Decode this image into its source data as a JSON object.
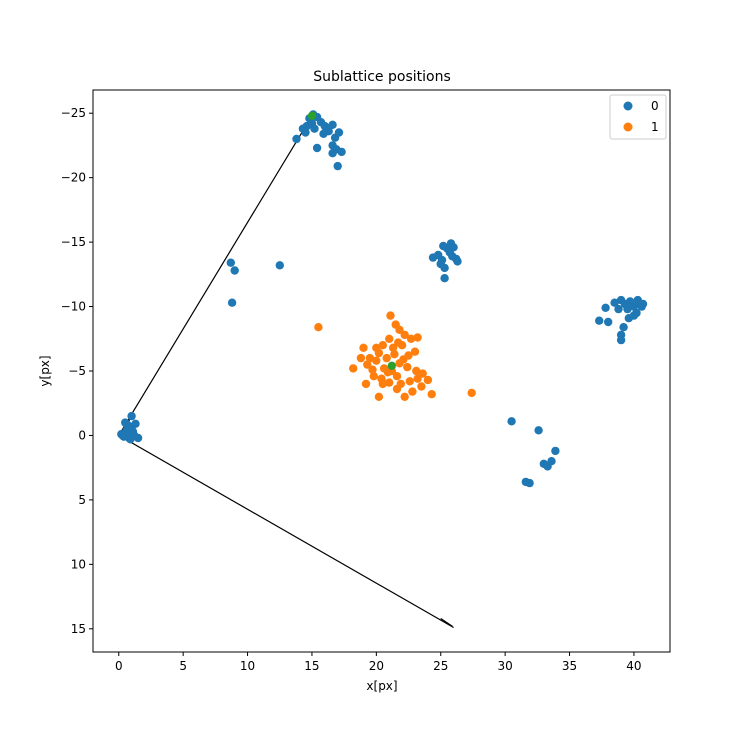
{
  "chart_data": {
    "type": "scatter",
    "title": "Sublattice positions",
    "xlabel": "x[px]",
    "ylabel": "y[px]",
    "xlim": [
      -2,
      42.8
    ],
    "ylim": [
      16.8,
      -26.8
    ],
    "y_inverted": true,
    "grid": false,
    "legend_position": "top-right",
    "x_ticks": [
      0,
      5,
      10,
      15,
      20,
      25,
      30,
      35,
      40
    ],
    "x_tick_labels": [
      "0",
      "5",
      "10",
      "15",
      "20",
      "25",
      "30",
      "35",
      "40"
    ],
    "y_ticks": [
      -25,
      -20,
      -15,
      -10,
      -5,
      0,
      5,
      10,
      15
    ],
    "y_tick_labels": [
      "−25",
      "−20",
      "−15",
      "−10",
      "−5",
      "0",
      "5",
      "10",
      "15"
    ],
    "series": [
      {
        "name": "0",
        "color": "#1f77b4",
        "points": [
          [
            0.2,
            -0.1
          ],
          [
            0.4,
            0.1
          ],
          [
            0.6,
            -0.2
          ],
          [
            0.8,
            0.2
          ],
          [
            1.0,
            -0.5
          ],
          [
            1.2,
            0.0
          ],
          [
            0.7,
            -0.8
          ],
          [
            1.3,
            -0.9
          ],
          [
            1.0,
            -1.5
          ],
          [
            0.5,
            -1.0
          ],
          [
            1.5,
            0.2
          ],
          [
            0.9,
            0.3
          ],
          [
            0.3,
            0.0
          ],
          [
            1.1,
            -0.3
          ],
          [
            0.6,
            -0.4
          ],
          [
            14.6,
            -24.0
          ],
          [
            14.8,
            -24.6
          ],
          [
            15.1,
            -24.9
          ],
          [
            15.4,
            -24.7
          ],
          [
            15.7,
            -24.3
          ],
          [
            15.2,
            -23.8
          ],
          [
            14.5,
            -23.5
          ],
          [
            16.0,
            -24.0
          ],
          [
            16.3,
            -23.6
          ],
          [
            16.6,
            -24.1
          ],
          [
            16.8,
            -23.1
          ],
          [
            17.1,
            -23.5
          ],
          [
            16.6,
            -22.5
          ],
          [
            16.9,
            -22.2
          ],
          [
            17.3,
            -22.0
          ],
          [
            16.6,
            -21.9
          ],
          [
            17.0,
            -20.9
          ],
          [
            15.4,
            -22.3
          ],
          [
            13.8,
            -23.0
          ],
          [
            14.3,
            -23.8
          ],
          [
            15.9,
            -23.4
          ],
          [
            15.0,
            -24.2
          ],
          [
            24.4,
            -13.8
          ],
          [
            24.8,
            -14.0
          ],
          [
            25.0,
            -13.3
          ],
          [
            25.3,
            -13.0
          ],
          [
            25.3,
            -12.2
          ],
          [
            25.5,
            -14.5
          ],
          [
            25.7,
            -14.2
          ],
          [
            25.9,
            -13.9
          ],
          [
            26.2,
            -13.7
          ],
          [
            26.3,
            -13.5
          ],
          [
            25.2,
            -14.7
          ],
          [
            25.8,
            -14.9
          ],
          [
            26.0,
            -14.6
          ],
          [
            25.1,
            -13.6
          ],
          [
            8.7,
            -13.4
          ],
          [
            9.0,
            -12.8
          ],
          [
            8.8,
            -10.3
          ],
          [
            12.5,
            -13.2
          ],
          [
            30.5,
            -1.1
          ],
          [
            32.6,
            -0.4
          ],
          [
            33.9,
            1.2
          ],
          [
            33.0,
            2.2
          ],
          [
            33.3,
            2.4
          ],
          [
            33.6,
            2.0
          ],
          [
            31.6,
            3.6
          ],
          [
            31.9,
            3.7
          ],
          [
            37.3,
            -8.9
          ],
          [
            37.8,
            -9.9
          ],
          [
            38.0,
            -8.8
          ],
          [
            38.5,
            -10.3
          ],
          [
            38.8,
            -9.8
          ],
          [
            39.0,
            -10.5
          ],
          [
            39.3,
            -10.2
          ],
          [
            39.5,
            -9.8
          ],
          [
            39.7,
            -10.4
          ],
          [
            40.0,
            -10.0
          ],
          [
            40.2,
            -9.5
          ],
          [
            40.4,
            -10.3
          ],
          [
            40.6,
            -10.0
          ],
          [
            39.6,
            -9.1
          ],
          [
            40.0,
            -9.3
          ],
          [
            39.2,
            -8.4
          ],
          [
            39.0,
            -7.8
          ],
          [
            39.0,
            -7.4
          ],
          [
            40.3,
            -10.5
          ],
          [
            40.7,
            -10.2
          ]
        ]
      },
      {
        "name": "1",
        "color": "#ff7f0e",
        "points": [
          [
            21.1,
            -9.3
          ],
          [
            21.5,
            -8.6
          ],
          [
            21.8,
            -8.2
          ],
          [
            22.2,
            -7.8
          ],
          [
            22.7,
            -7.5
          ],
          [
            23.2,
            -7.6
          ],
          [
            21.0,
            -7.5
          ],
          [
            20.5,
            -7.0
          ],
          [
            21.3,
            -6.8
          ],
          [
            22.0,
            -7.0
          ],
          [
            22.5,
            -6.2
          ],
          [
            23.0,
            -6.5
          ],
          [
            20.2,
            -6.4
          ],
          [
            19.5,
            -6.0
          ],
          [
            19.0,
            -6.8
          ],
          [
            18.8,
            -6.0
          ],
          [
            19.3,
            -5.5
          ],
          [
            20.0,
            -5.8
          ],
          [
            20.6,
            -5.2
          ],
          [
            21.2,
            -5.0
          ],
          [
            21.8,
            -5.6
          ],
          [
            22.4,
            -5.3
          ],
          [
            23.1,
            -5.0
          ],
          [
            23.6,
            -4.8
          ],
          [
            24.0,
            -4.3
          ],
          [
            23.5,
            -3.8
          ],
          [
            22.8,
            -3.4
          ],
          [
            22.2,
            -3.0
          ],
          [
            21.6,
            -3.6
          ],
          [
            21.0,
            -4.1
          ],
          [
            20.4,
            -4.4
          ],
          [
            19.8,
            -4.6
          ],
          [
            19.2,
            -4.0
          ],
          [
            20.2,
            -3.0
          ],
          [
            18.2,
            -5.2
          ],
          [
            20.8,
            -6.0
          ],
          [
            21.6,
            -4.6
          ],
          [
            22.6,
            -4.2
          ],
          [
            24.3,
            -3.2
          ],
          [
            27.4,
            -3.3
          ],
          [
            15.5,
            -8.4
          ],
          [
            20.9,
            -4.9
          ],
          [
            21.4,
            -6.3
          ],
          [
            19.7,
            -5.1
          ],
          [
            22.1,
            -5.9
          ],
          [
            20.5,
            -4.0
          ],
          [
            21.9,
            -4.0
          ],
          [
            23.2,
            -4.4
          ],
          [
            20.0,
            -6.8
          ],
          [
            21.7,
            -7.2
          ]
        ]
      },
      {
        "name": "",
        "color": "#2ca02c",
        "points": [
          [
            21.2,
            -5.4
          ],
          [
            15.0,
            -24.8
          ]
        ]
      }
    ],
    "lines": [
      {
        "points": [
          [
            0,
            0
          ],
          [
            15.0,
            -24.8
          ]
        ],
        "color": "#000000"
      },
      {
        "points": [
          [
            0,
            0
          ],
          [
            26.0,
            14.9
          ]
        ],
        "color": "#000000"
      },
      {
        "points": [
          [
            0.2,
            -0.1
          ],
          [
            1.0,
            -1.5
          ]
        ],
        "color": "#000000"
      },
      {
        "points": [
          [
            25.0,
            14.2
          ],
          [
            25.9,
            14.8
          ]
        ],
        "color": "#000000"
      }
    ],
    "legend": [
      {
        "label": "0",
        "color": "#1f77b4"
      },
      {
        "label": "1",
        "color": "#ff7f0e"
      }
    ]
  }
}
